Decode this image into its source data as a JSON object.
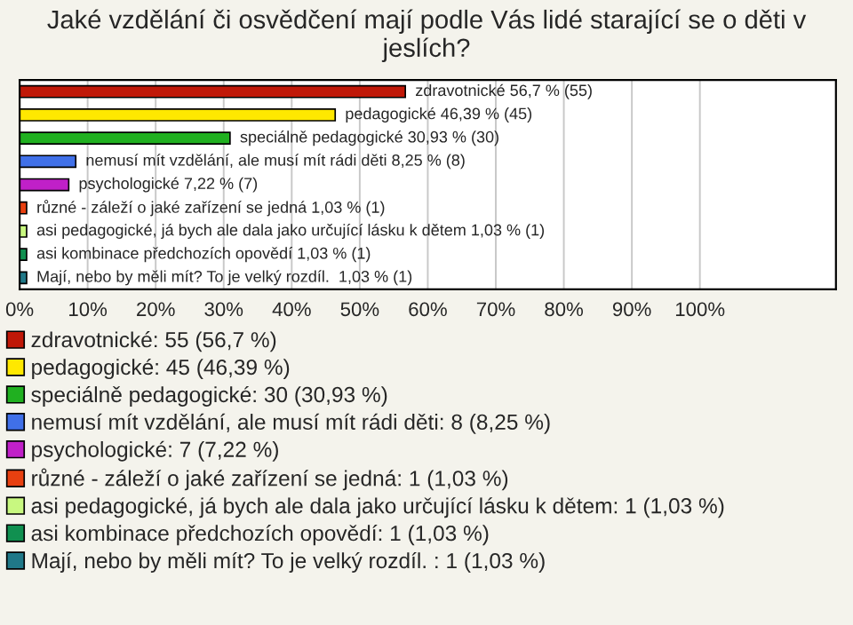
{
  "chart_data": {
    "type": "bar",
    "orientation": "horizontal",
    "title": "Jaké vzdělání či osvědčení mají podle Vás lidé starající se o děti v jeslích?",
    "categories": [
      null,
      null,
      null,
      null,
      null,
      null,
      null,
      null,
      null
    ],
    "xlim": [
      0,
      120
    ],
    "xticks": [
      {
        "value": 0,
        "label": "0%"
      },
      {
        "value": 10,
        "label": "10%"
      },
      {
        "value": 20,
        "label": "20%"
      },
      {
        "value": 30,
        "label": "30%"
      },
      {
        "value": 40,
        "label": "40%"
      },
      {
        "value": 50,
        "label": "50%"
      },
      {
        "value": 60,
        "label": "60%"
      },
      {
        "value": 70,
        "label": "70%"
      },
      {
        "value": 80,
        "label": "80%"
      },
      {
        "value": 90,
        "label": "90%"
      },
      {
        "value": 100,
        "label": "100%"
      }
    ],
    "grid": "x",
    "legend": "bottom",
    "tick_labels": "x",
    "series": [
      {
        "name": "zdravotnické: 55 (56,7 %)",
        "color": "#c01808",
        "values": [
          56.7,
          null,
          null,
          null,
          null,
          null,
          null,
          null,
          null
        ],
        "value_labels": [
          "zdravotnické 56,7 % (55)",
          null,
          null,
          null,
          null,
          null,
          null,
          null,
          null
        ]
      },
      {
        "name": "pedagogické: 45 (46,39 %)",
        "color": "#ffe800",
        "values": [
          null,
          46.39,
          null,
          null,
          null,
          null,
          null,
          null,
          null
        ],
        "value_labels": [
          null,
          "pedagogické 46,39 % (45)",
          null,
          null,
          null,
          null,
          null,
          null,
          null
        ]
      },
      {
        "name": "speciálně pedagogické: 30 (30,93 %)",
        "color": "#20b020",
        "values": [
          null,
          null,
          30.93,
          null,
          null,
          null,
          null,
          null,
          null
        ],
        "value_labels": [
          null,
          null,
          "speciálně pedagogické 30,93 % (30)",
          null,
          null,
          null,
          null,
          null,
          null
        ]
      },
      {
        "name": "nemusí mít vzdělání, ale musí mít rádi děti: 8 (8,25 %)",
        "color": "#4070e8",
        "values": [
          null,
          null,
          null,
          8.25,
          null,
          null,
          null,
          null,
          null
        ],
        "value_labels": [
          null,
          null,
          null,
          "nemusí mít vzdělání, ale musí mít rádi děti 8,25 % (8)",
          null,
          null,
          null,
          null,
          null
        ]
      },
      {
        "name": "psychologické: 7 (7,22 %)",
        "color": "#c020c8",
        "values": [
          null,
          null,
          null,
          null,
          7.22,
          null,
          null,
          null,
          null
        ],
        "value_labels": [
          null,
          null,
          null,
          null,
          "psychologické 7,22 % (7)",
          null,
          null,
          null,
          null
        ]
      },
      {
        "name": "různé - záleží o jaké zařízení se jedná: 1 (1,03 %)",
        "color": "#e84010",
        "values": [
          null,
          null,
          null,
          null,
          null,
          1.03,
          null,
          null,
          null
        ],
        "value_labels": [
          null,
          null,
          null,
          null,
          null,
          "různé - záleží o jaké zařízení se jedná 1,03 % (1)",
          null,
          null,
          null
        ]
      },
      {
        "name": "asi pedagogické, já bych ale dala jako určující lásku k dětem: 1 (1,03 %)",
        "color": "#c8f880",
        "values": [
          null,
          null,
          null,
          null,
          null,
          null,
          1.03,
          null,
          null
        ],
        "value_labels": [
          null,
          null,
          null,
          null,
          null,
          null,
          "asi pedagogické, já bych ale dala jako určující lásku k dětem 1,03 % (1)",
          null,
          null
        ]
      },
      {
        "name": "asi kombinace předchozích opovědí: 1 (1,03 %)",
        "color": "#109050",
        "values": [
          null,
          null,
          null,
          null,
          null,
          null,
          null,
          1.03,
          null
        ],
        "value_labels": [
          null,
          null,
          null,
          null,
          null,
          null,
          null,
          "asi kombinace předchozích opovědí 1,03 % (1)",
          null
        ]
      },
      {
        "name": "Mají, nebo by měli mít? To je velký rozdíl. : 1 (1,03 %)",
        "color": "#207888",
        "values": [
          null,
          null,
          null,
          null,
          null,
          null,
          null,
          null,
          1.03
        ],
        "value_labels": [
          null,
          null,
          null,
          null,
          null,
          null,
          null,
          null,
          "Mají, nebo by měli mít? To je velký rozdíl.  1,03 % (1)"
        ]
      }
    ]
  }
}
